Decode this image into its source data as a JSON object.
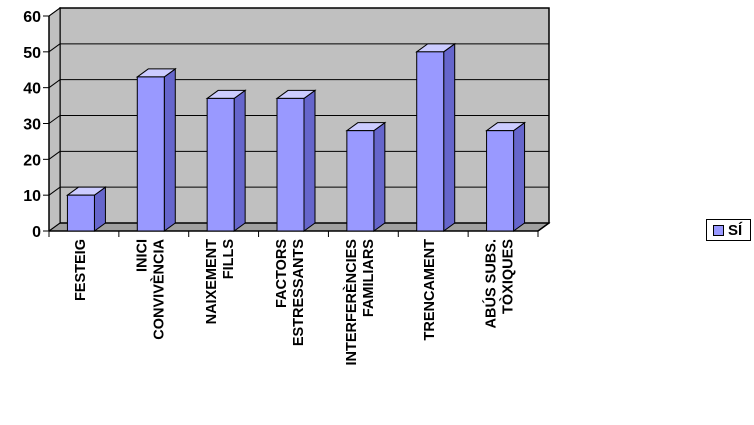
{
  "chart_data": {
    "type": "bar",
    "categories": [
      [
        "FESTEIG"
      ],
      [
        "INICI",
        "CONVIVÈNCIA"
      ],
      [
        "NAIXEMENT",
        "FILLS"
      ],
      [
        "FACTORS",
        "ESTRESSANTS"
      ],
      [
        "INTERFERÈNCIES",
        "FAMILIARS"
      ],
      [
        "TRENCAMENT"
      ],
      [
        "ABÚS SUBS.",
        "TÒXIQUES"
      ]
    ],
    "series": [
      {
        "name": "SÍ",
        "values": [
          10,
          43,
          37,
          37,
          28,
          50,
          28
        ]
      }
    ],
    "ylim": [
      0,
      60
    ],
    "yticks": [
      "0",
      "10",
      "20",
      "30",
      "40",
      "50",
      "60"
    ],
    "title": "",
    "xlabel": "",
    "ylabel": "",
    "grid": true,
    "legend_position": "right",
    "style": "3d-column",
    "colors": {
      "bar_front": "#9999ff",
      "bar_top": "#ccccff",
      "bar_side": "#6666cc",
      "wall": "#c0c0c0",
      "floor": "#a0a0a0",
      "grid": "#000000"
    }
  }
}
